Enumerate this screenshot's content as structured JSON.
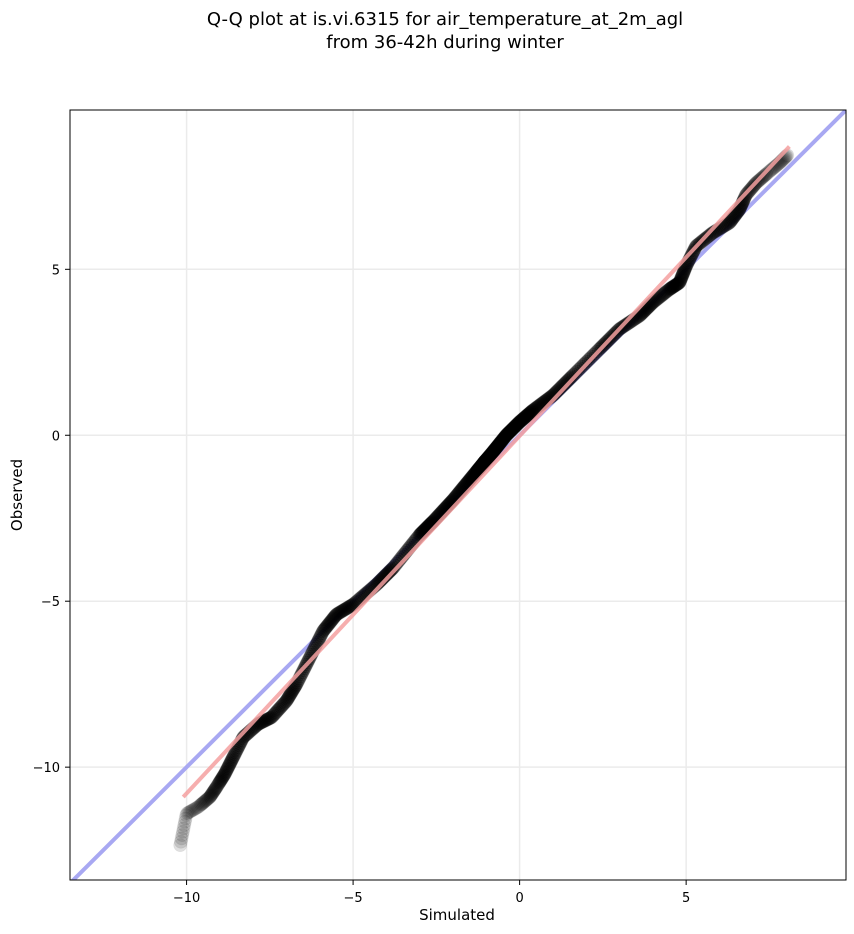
{
  "chart_data": {
    "type": "scatter",
    "title_line1": "Q-Q plot at is.vi.6315 for air_temperature_at_2m_agl",
    "title_line2": "from 36-42h during winter",
    "xlabel": "Simulated",
    "ylabel": "Observed",
    "xlim": [
      -13.5,
      9.8
    ],
    "ylim": [
      -13.4,
      9.8
    ],
    "xticks": [
      -10,
      -5,
      0,
      5
    ],
    "yticks": [
      -10,
      -5,
      0,
      5
    ],
    "xtick_labels": [
      "−10",
      "−5",
      "0",
      "5"
    ],
    "ytick_labels": [
      "−10",
      "−5",
      "0",
      "5"
    ],
    "grid": true,
    "reference_line": {
      "slope": 1,
      "intercept": 0,
      "color": "#a8a8f2"
    },
    "fit_line": {
      "x": [
        -10.1,
        8.1
      ],
      "y": [
        -10.9,
        8.7
      ],
      "color": "#f4a0a0"
    },
    "qq_knots": [
      [
        -10.2,
        -12.4
      ],
      [
        -10.0,
        -11.4
      ],
      [
        -9.65,
        -11.2
      ],
      [
        -9.3,
        -10.9
      ],
      [
        -9.1,
        -10.6
      ],
      [
        -8.85,
        -10.2
      ],
      [
        -8.6,
        -9.7
      ],
      [
        -8.3,
        -9.1
      ],
      [
        -7.85,
        -8.7
      ],
      [
        -7.45,
        -8.5
      ],
      [
        -7.0,
        -8.0
      ],
      [
        -6.7,
        -7.5
      ],
      [
        -6.3,
        -6.7
      ],
      [
        -5.9,
        -5.9
      ],
      [
        -5.5,
        -5.4
      ],
      [
        -5.0,
        -5.1
      ],
      [
        -4.3,
        -4.5
      ],
      [
        -3.8,
        -4.0
      ],
      [
        -3.0,
        -3.0
      ],
      [
        -2.6,
        -2.6
      ],
      [
        -2.0,
        -1.95
      ],
      [
        -1.3,
        -1.1
      ],
      [
        -0.8,
        -0.5
      ],
      [
        -0.4,
        0.0
      ],
      [
        0.0,
        0.4
      ],
      [
        0.4,
        0.75
      ],
      [
        1.0,
        1.2
      ],
      [
        1.6,
        1.8
      ],
      [
        2.4,
        2.6
      ],
      [
        3.0,
        3.2
      ],
      [
        3.6,
        3.6
      ],
      [
        4.0,
        4.0
      ],
      [
        4.5,
        4.4
      ],
      [
        4.8,
        4.6
      ],
      [
        5.0,
        5.1
      ],
      [
        5.3,
        5.7
      ],
      [
        5.8,
        6.1
      ],
      [
        6.3,
        6.4
      ],
      [
        6.6,
        6.8
      ],
      [
        6.8,
        7.25
      ],
      [
        7.1,
        7.6
      ],
      [
        7.5,
        7.95
      ],
      [
        7.8,
        8.2
      ],
      [
        8.05,
        8.45
      ]
    ],
    "n_points": 680
  }
}
